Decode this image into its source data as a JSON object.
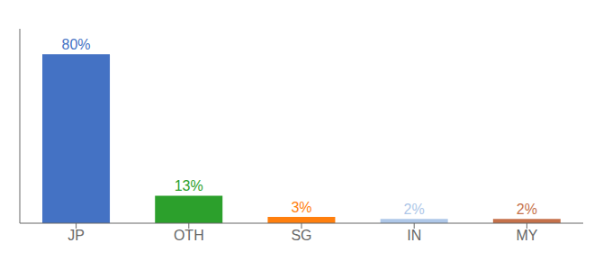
{
  "chart_data": {
    "type": "bar",
    "categories": [
      "JP",
      "OTH",
      "SG",
      "IN",
      "MY"
    ],
    "values": [
      80,
      13,
      3,
      2,
      2
    ],
    "value_labels": [
      "80%",
      "13%",
      "3%",
      "2%",
      "2%"
    ],
    "data_labels": true,
    "colors": [
      "#4472c4",
      "#2ca02c",
      "#ff7f0e",
      "#aec7e8",
      "#c5714a"
    ],
    "ylim": [
      0,
      92
    ],
    "tick_labels": "x"
  }
}
